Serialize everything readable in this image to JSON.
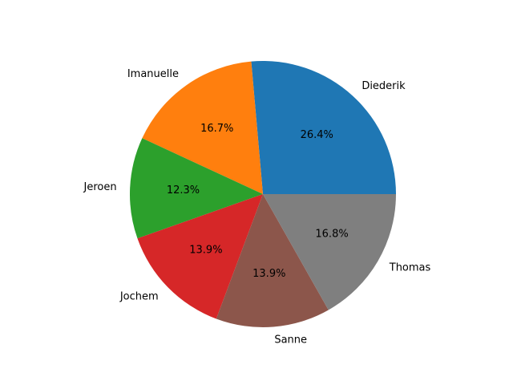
{
  "chart_data": {
    "type": "pie",
    "title": "",
    "start_angle_deg": 0,
    "direction": "counterclockwise",
    "legend": "none",
    "slices": [
      {
        "label": "Diederik",
        "value": 26.4,
        "pct_label": "26.4%",
        "color": "#1f77b4"
      },
      {
        "label": "Imanuelle",
        "value": 16.7,
        "pct_label": "16.7%",
        "color": "#ff7f0e"
      },
      {
        "label": "Jeroen",
        "value": 12.3,
        "pct_label": "12.3%",
        "color": "#2ca02c"
      },
      {
        "label": "Jochem",
        "value": 13.9,
        "pct_label": "13.9%",
        "color": "#d62728"
      },
      {
        "label": "Sanne",
        "value": 13.9,
        "pct_label": "13.9%",
        "color": "#8c564b"
      },
      {
        "label": "Thomas",
        "value": 16.8,
        "pct_label": "16.8%",
        "color": "#7f7f7f"
      }
    ]
  }
}
